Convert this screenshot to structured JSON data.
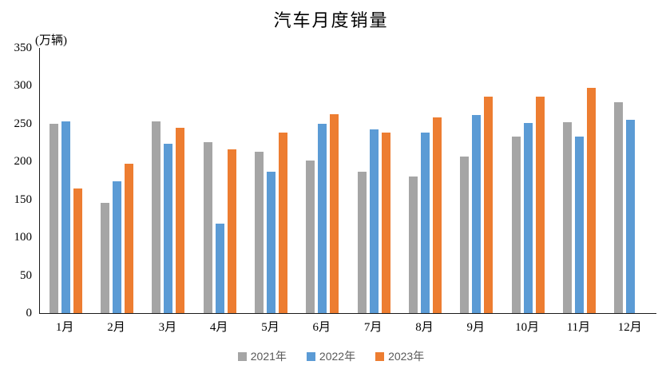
{
  "chart_data": {
    "type": "bar",
    "title": "汽车月度销量",
    "unit_label": "(万辆)",
    "xlabel": "",
    "ylabel": "(万辆)",
    "categories": [
      "1月",
      "2月",
      "3月",
      "4月",
      "5月",
      "6月",
      "7月",
      "8月",
      "9月",
      "10月",
      "11月",
      "12月"
    ],
    "series": [
      {
        "name": "2021年",
        "color": "#A5A5A5",
        "values": [
          250.3,
          145.5,
          252.6,
          225.2,
          212.8,
          201.5,
          186.4,
          179.9,
          206.7,
          233.3,
          252.2,
          278.6
        ]
      },
      {
        "name": "2022年",
        "color": "#5B9BD5",
        "values": [
          253.1,
          173.7,
          223.4,
          118.1,
          186.2,
          250.2,
          242.0,
          238.3,
          261.0,
          250.5,
          232.8,
          255.6
        ]
      },
      {
        "name": "2023年",
        "color": "#ED7D31",
        "values": [
          164.9,
          197.6,
          245.1,
          215.9,
          238.2,
          262.2,
          238.7,
          258.2,
          285.8,
          285.3,
          297.0,
          null
        ]
      }
    ],
    "ylim": [
      0,
      350
    ],
    "yticks": [
      0,
      50,
      100,
      150,
      200,
      250,
      300,
      350
    ],
    "grid": false,
    "legend_position": "bottom",
    "axis_color": "#1a1a1a",
    "tick_label_color": "#000000",
    "legend_text_color": "#595959",
    "background_color": "#ffffff"
  }
}
